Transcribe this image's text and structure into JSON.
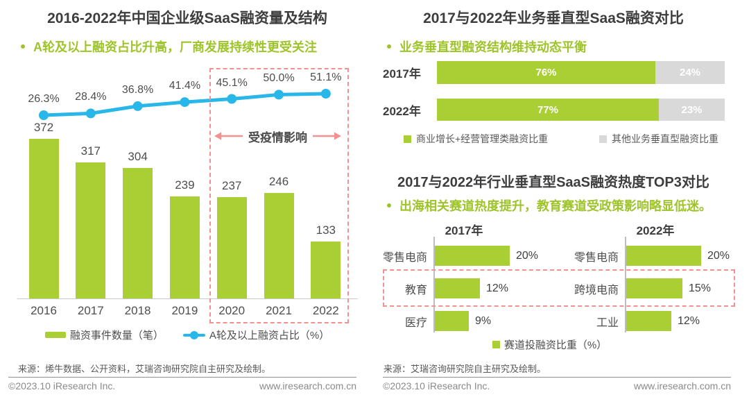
{
  "colors": {
    "green": "#A9CF35",
    "green_text": "#9EC42A",
    "blue": "#29B7E9",
    "gray_bar": "#D9D9D9",
    "red_dashed": "#F2918D"
  },
  "left_panel": {
    "title": "2016-2022年中国企业级SaaS融资量及结构",
    "subtitle": "A轮及以上融资占比升高，厂商发展持续性更受关注",
    "covid_annotation": "受疫情影响",
    "legend_bar": "融资事件数量（笔）",
    "legend_line": "A轮及以上融资占比（%）",
    "source": "来源：烯牛数据、公开资料，艾瑞咨询研究院自主研究及绘制。"
  },
  "right_top": {
    "title": "2017与2022年业务垂直型SaaS融资对比",
    "subtitle": "业务垂直型融资结构维持动态平衡",
    "legend_green": "商业增长+经营管理类融资比重",
    "legend_gray": "其他业务垂直型融资比重"
  },
  "right_bottom": {
    "title": "2017与2022年行业垂直型SaaS融资热度TOP3对比",
    "subtitle": "出海相关赛道热度提升，教育赛道受政策影响略显低迷。",
    "legend": "赛道投融资比重（%）",
    "source": "来源：艾瑞咨询研究院自主研究及绘制。"
  },
  "footer": {
    "copyright": "©2023.10 iResearch Inc.",
    "website": "www.iresearch.com.cn"
  },
  "chart_data": [
    {
      "type": "bar",
      "title": "2016-2022年中国企业级SaaS融资量及结构",
      "categories": [
        "2016",
        "2017",
        "2018",
        "2019",
        "2020",
        "2021",
        "2022"
      ],
      "series": [
        {
          "name": "融资事件数量（笔）",
          "type": "bar",
          "values": [
            372,
            317,
            304,
            239,
            237,
            246,
            133
          ]
        },
        {
          "name": "A轮及以上融资占比（%）",
          "type": "line",
          "values": [
            26.3,
            28.4,
            36.8,
            41.4,
            45.1,
            50.0,
            51.1
          ],
          "labels": [
            "26.3%",
            "28.4%",
            "36.8%",
            "41.4%",
            "45.1%",
            "50.0%",
            "51.1%"
          ]
        }
      ],
      "annotation": {
        "text": "受疫情影响",
        "categories": [
          "2020",
          "2021",
          "2022"
        ]
      },
      "legend_position": "bottom",
      "grid": false
    },
    {
      "type": "bar",
      "subtype": "horizontal-stacked",
      "title": "2017与2022年业务垂直型SaaS融资对比",
      "categories": [
        "2017年",
        "2022年"
      ],
      "series": [
        {
          "name": "商业增长+经营管理类融资比重",
          "values": [
            76,
            77
          ],
          "labels": [
            "76%",
            "77%"
          ]
        },
        {
          "name": "其他业务垂直型融资比重",
          "values": [
            24,
            23
          ],
          "labels": [
            "24%",
            "23%"
          ]
        }
      ],
      "unit": "%",
      "xlim": [
        0,
        100
      ]
    },
    {
      "type": "bar",
      "subtype": "horizontal-grouped",
      "title": "2017与2022年行业垂直型SaaS融资热度TOP3对比",
      "groups": [
        {
          "label": "2017年",
          "items": [
            {
              "category": "零售电商",
              "value": 20,
              "label": "20%"
            },
            {
              "category": "教育",
              "value": 12,
              "label": "12%"
            },
            {
              "category": "医疗",
              "value": 9,
              "label": "9%"
            }
          ]
        },
        {
          "label": "2022年",
          "items": [
            {
              "category": "零售电商",
              "value": 20,
              "label": "20%"
            },
            {
              "category": "跨境电商",
              "value": 15,
              "label": "15%"
            },
            {
              "category": "工业",
              "value": 12,
              "label": "12%"
            }
          ]
        }
      ],
      "highlighted_rank": 2,
      "legend": "赛道投融资比重（%）",
      "unit": "%"
    }
  ]
}
